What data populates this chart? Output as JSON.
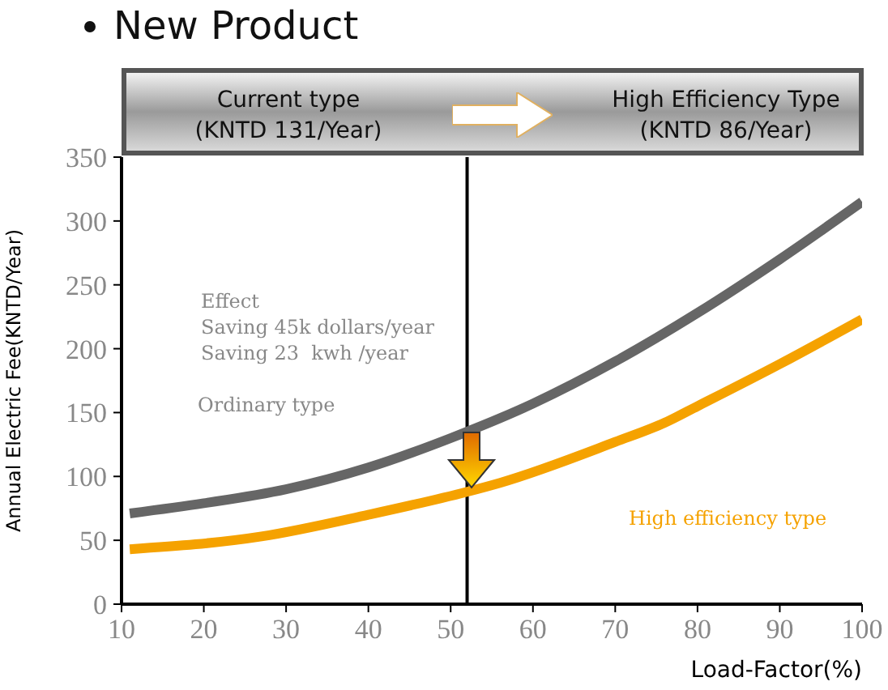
{
  "chart_data": {
    "type": "line",
    "title": "New Product",
    "xlabel": "Load-Factor(%)",
    "ylabel": "Annual Electric Fee(KNTD/Year)",
    "annotations": [
      "Current type",
      "(KNTD 131/Year)",
      "High Efficiency Type",
      "(KNTD 86/Year)",
      "Effect",
      "Saving 45k dollars/year",
      "Saving 23  kwh /year"
    ],
    "series": [
      {
        "name": "Ordinary type",
        "color": "#666666",
        "x": [
          11,
          20,
          30,
          40,
          50,
          60,
          70,
          80,
          90,
          100
        ],
        "values": [
          71,
          79,
          90,
          107,
          130,
          157,
          190,
          228,
          270,
          315
        ]
      },
      {
        "name": "High efficiency type",
        "color": "#f5a200",
        "x": [
          11,
          27,
          40,
          52,
          56,
          70,
          76,
          80,
          90,
          100
        ],
        "values": [
          43,
          53,
          70,
          88,
          95,
          127,
          142,
          155,
          188,
          223
        ]
      }
    ],
    "xlim": [
      10,
      100
    ],
    "xticks": [
      10,
      20,
      30,
      40,
      50,
      60,
      70,
      80,
      90,
      100
    ],
    "ylim": [
      0,
      350
    ],
    "yticks": [
      0,
      50,
      100,
      150,
      200,
      250,
      300,
      350
    ],
    "ref_lines": [
      {
        "axis": "x",
        "value": 52,
        "color": "#000000"
      }
    ],
    "grid": false,
    "marker": "none",
    "line_style": "solid"
  }
}
